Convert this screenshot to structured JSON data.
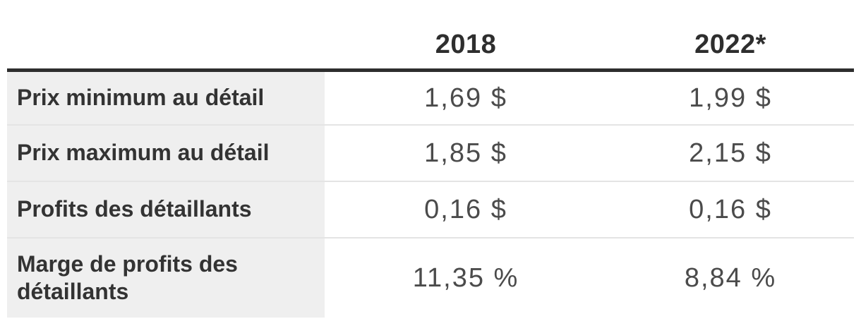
{
  "chart_data": {
    "type": "table",
    "columns": [
      "",
      "2018",
      "2022*"
    ],
    "rows": [
      {
        "label": "Prix minimum au détail",
        "values": [
          "1,69 $",
          "1,99 $"
        ],
        "numeric": [
          1.69,
          1.99
        ]
      },
      {
        "label": "Prix maximum au détail",
        "values": [
          "1,85 $",
          "2,15 $"
        ],
        "numeric": [
          1.85,
          2.15
        ]
      },
      {
        "label": "Profits des détaillants",
        "values": [
          "0,16 $",
          "0,16 $"
        ],
        "numeric": [
          0.16,
          0.16
        ]
      },
      {
        "label": "Marge de profits des détaillants",
        "values": [
          "11,35 %",
          "8,84 %"
        ],
        "numeric": [
          11.35,
          8.84
        ]
      }
    ],
    "colors": {
      "label_column_background": "#efefef",
      "header_rule": "#2e2e2e",
      "row_separator": "#e4e4e4",
      "label_text": "#333333",
      "value_text": "#4b4b4b"
    }
  }
}
